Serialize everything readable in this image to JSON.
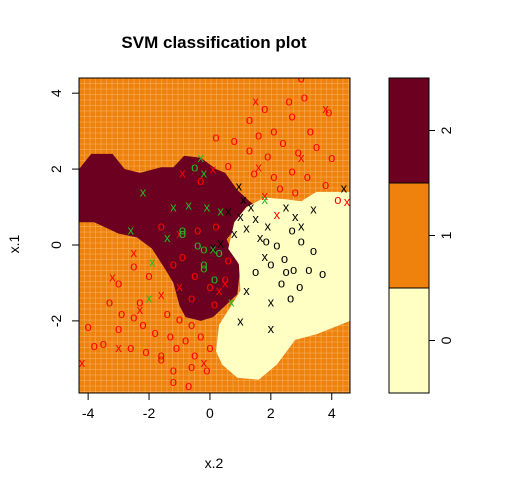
{
  "chart_data": {
    "type": "scatter",
    "title": "SVM classification plot",
    "xlabel": "x.2",
    "ylabel": "x.1",
    "xlim": [
      -4.3,
      4.6
    ],
    "ylim": [
      -3.9,
      4.4
    ],
    "xticks": [
      "-4",
      "-2",
      "0",
      "2",
      "4"
    ],
    "xtick_values": [
      -4,
      -2,
      0,
      2,
      4
    ],
    "yticks": [
      "-2",
      "0",
      "2",
      "4"
    ],
    "ytick_values": [
      -2,
      0,
      2,
      4
    ],
    "grid": true,
    "legend_levels": [
      "0",
      "1",
      "2"
    ],
    "colors": {
      "region_0": "#ffffc4",
      "region_1": "#ee820c",
      "region_2": "#6b0020",
      "class_0": "#000000",
      "class_1": "#ff0000",
      "class_2": "#22bb22",
      "grid": "#f6b56a"
    },
    "regions": [
      {
        "level": "2",
        "polygon": [
          [
            -4.3,
            2.0
          ],
          [
            -3.9,
            2.4
          ],
          [
            -3.2,
            2.4
          ],
          [
            -2.8,
            2.0
          ],
          [
            -2.3,
            1.9
          ],
          [
            -1.6,
            2.05
          ],
          [
            -1.2,
            2.05
          ],
          [
            -0.85,
            2.35
          ],
          [
            -0.3,
            2.3
          ],
          [
            0.2,
            2.0
          ],
          [
            0.5,
            1.9
          ],
          [
            0.9,
            1.45
          ],
          [
            1.3,
            1.15
          ],
          [
            1.55,
            1.0
          ],
          [
            1.0,
            0.6
          ],
          [
            0.55,
            0.15
          ],
          [
            0.75,
            -0.2
          ],
          [
            1.0,
            -0.6
          ],
          [
            0.9,
            -1.3
          ],
          [
            0.5,
            -1.6
          ],
          [
            0.1,
            -1.9
          ],
          [
            -0.3,
            -2.0
          ],
          [
            -0.8,
            -1.9
          ],
          [
            -1.0,
            -1.6
          ],
          [
            -1.2,
            -1.0
          ],
          [
            -1.5,
            -0.6
          ],
          [
            -1.9,
            -0.1
          ],
          [
            -2.4,
            0.2
          ],
          [
            -3.0,
            0.3
          ],
          [
            -3.8,
            0.6
          ],
          [
            -4.3,
            0.6
          ]
        ]
      },
      {
        "level": "0",
        "polygon": [
          [
            0.6,
            -0.1
          ],
          [
            0.8,
            0.6
          ],
          [
            1.2,
            1.0
          ],
          [
            1.8,
            1.25
          ],
          [
            2.5,
            1.2
          ],
          [
            3.0,
            1.15
          ],
          [
            3.5,
            1.4
          ],
          [
            4.6,
            1.4
          ],
          [
            4.6,
            -2.0
          ],
          [
            3.5,
            -2.35
          ],
          [
            2.8,
            -2.5
          ],
          [
            2.2,
            -3.15
          ],
          [
            1.6,
            -3.55
          ],
          [
            0.9,
            -3.5
          ],
          [
            0.4,
            -3.15
          ],
          [
            0.2,
            -2.8
          ],
          [
            0.3,
            -2.1
          ],
          [
            0.7,
            -1.6
          ],
          [
            1.0,
            -1.2
          ],
          [
            0.95,
            -0.5
          ]
        ]
      }
    ],
    "series": [
      {
        "class": "0",
        "points": [
          {
            "x": 0.95,
            "y": 1.55,
            "m": "x"
          },
          {
            "x": 1.1,
            "y": 1.2,
            "m": "x"
          },
          {
            "x": 1.35,
            "y": 1.0,
            "m": "x"
          },
          {
            "x": 1.0,
            "y": 0.75,
            "m": "x"
          },
          {
            "x": 0.8,
            "y": 0.3,
            "m": "x"
          },
          {
            "x": 1.2,
            "y": 0.45,
            "m": "x"
          },
          {
            "x": 1.5,
            "y": 0.7,
            "m": "x"
          },
          {
            "x": 0.35,
            "y": 0.05,
            "m": "x"
          },
          {
            "x": 0.1,
            "y": -0.05,
            "m": "x"
          },
          {
            "x": 0.6,
            "y": 0.9,
            "m": "x"
          },
          {
            "x": 1.65,
            "y": 0.2,
            "m": "x"
          },
          {
            "x": 1.8,
            "y": -0.3,
            "m": "x"
          },
          {
            "x": 2.5,
            "y": 1.0,
            "m": "x"
          },
          {
            "x": 2.8,
            "y": 0.75,
            "m": "x"
          },
          {
            "x": 3.4,
            "y": 0.95,
            "m": "x"
          },
          {
            "x": 4.4,
            "y": 1.5,
            "m": "x"
          },
          {
            "x": 3.0,
            "y": 0.5,
            "m": "x"
          },
          {
            "x": 1.2,
            "y": -1.2,
            "m": "x"
          },
          {
            "x": 2.0,
            "y": -1.5,
            "m": "x"
          },
          {
            "x": 1.0,
            "y": -2.0,
            "m": "x"
          },
          {
            "x": 2.0,
            "y": -2.2,
            "m": "x"
          },
          {
            "x": 1.9,
            "y": 0.5,
            "m": "x"
          },
          {
            "x": 2.2,
            "y": 0.0,
            "m": "o"
          },
          {
            "x": 2.0,
            "y": -0.5,
            "m": "o"
          },
          {
            "x": 2.45,
            "y": -0.35,
            "m": "o"
          },
          {
            "x": 2.5,
            "y": -0.7,
            "m": "o"
          },
          {
            "x": 2.75,
            "y": -0.65,
            "m": "o"
          },
          {
            "x": 2.35,
            "y": -1.0,
            "m": "o"
          },
          {
            "x": 3.0,
            "y": 0.1,
            "m": "o"
          },
          {
            "x": 3.4,
            "y": -0.15,
            "m": "o"
          },
          {
            "x": 3.25,
            "y": -0.65,
            "m": "o"
          },
          {
            "x": 3.7,
            "y": -0.75,
            "m": "o"
          },
          {
            "x": 2.95,
            "y": -1.1,
            "m": "o"
          },
          {
            "x": 2.65,
            "y": -1.4,
            "m": "o"
          },
          {
            "x": 1.85,
            "y": 0.1,
            "m": "o"
          },
          {
            "x": 2.7,
            "y": 0.4,
            "m": "o"
          },
          {
            "x": 1.5,
            "y": -0.7,
            "m": "o"
          }
        ]
      },
      {
        "class": "1",
        "points": [
          {
            "x": 3.0,
            "y": 4.4,
            "m": "o"
          },
          {
            "x": 1.8,
            "y": 3.6,
            "m": "o"
          },
          {
            "x": 2.6,
            "y": 3.8,
            "m": "o"
          },
          {
            "x": 3.1,
            "y": 3.9,
            "m": "o"
          },
          {
            "x": 3.9,
            "y": 3.5,
            "m": "o"
          },
          {
            "x": 1.3,
            "y": 3.3,
            "m": "o"
          },
          {
            "x": 1.6,
            "y": 2.9,
            "m": "o"
          },
          {
            "x": 2.1,
            "y": 3.0,
            "m": "o"
          },
          {
            "x": 2.7,
            "y": 3.4,
            "m": "o"
          },
          {
            "x": 3.3,
            "y": 3.0,
            "m": "o"
          },
          {
            "x": 0.2,
            "y": 2.85,
            "m": "o"
          },
          {
            "x": 0.8,
            "y": 2.75,
            "m": "o"
          },
          {
            "x": 1.3,
            "y": 2.5,
            "m": "o"
          },
          {
            "x": 1.9,
            "y": 2.35,
            "m": "o"
          },
          {
            "x": 2.4,
            "y": 2.7,
            "m": "o"
          },
          {
            "x": 2.9,
            "y": 2.45,
            "m": "o"
          },
          {
            "x": 3.5,
            "y": 2.6,
            "m": "o"
          },
          {
            "x": 4.0,
            "y": 2.3,
            "m": "o"
          },
          {
            "x": 1.45,
            "y": 1.9,
            "m": "o"
          },
          {
            "x": 2.1,
            "y": 1.8,
            "m": "o"
          },
          {
            "x": 2.7,
            "y": 1.95,
            "m": "o"
          },
          {
            "x": 3.2,
            "y": 1.8,
            "m": "o"
          },
          {
            "x": 3.8,
            "y": 1.6,
            "m": "o"
          },
          {
            "x": 2.3,
            "y": 1.5,
            "m": "o"
          },
          {
            "x": 2.8,
            "y": 1.4,
            "m": "o"
          },
          {
            "x": 4.2,
            "y": 1.2,
            "m": "o"
          },
          {
            "x": 0.6,
            "y": 2.1,
            "m": "o"
          },
          {
            "x": -0.3,
            "y": 1.7,
            "m": "o"
          },
          {
            "x": -2.3,
            "y": -1.5,
            "m": "o"
          },
          {
            "x": -3.3,
            "y": -1.5,
            "m": "o"
          },
          {
            "x": -2.9,
            "y": -1.8,
            "m": "o"
          },
          {
            "x": -2.5,
            "y": -1.9,
            "m": "o"
          },
          {
            "x": -3.0,
            "y": -2.2,
            "m": "o"
          },
          {
            "x": -2.2,
            "y": -2.1,
            "m": "o"
          },
          {
            "x": -1.4,
            "y": -1.8,
            "m": "o"
          },
          {
            "x": -1.0,
            "y": -1.95,
            "m": "o"
          },
          {
            "x": -0.6,
            "y": -2.1,
            "m": "o"
          },
          {
            "x": -1.8,
            "y": -2.3,
            "m": "o"
          },
          {
            "x": -1.3,
            "y": -2.4,
            "m": "o"
          },
          {
            "x": -0.8,
            "y": -2.5,
            "m": "o"
          },
          {
            "x": -0.3,
            "y": -2.4,
            "m": "o"
          },
          {
            "x": -2.6,
            "y": -2.7,
            "m": "o"
          },
          {
            "x": -2.1,
            "y": -2.8,
            "m": "o"
          },
          {
            "x": -1.6,
            "y": -2.9,
            "m": "o"
          },
          {
            "x": -1.1,
            "y": -2.7,
            "m": "o"
          },
          {
            "x": -0.5,
            "y": -2.9,
            "m": "o"
          },
          {
            "x": 0.0,
            "y": -2.7,
            "m": "o"
          },
          {
            "x": -3.5,
            "y": -2.6,
            "m": "o"
          },
          {
            "x": -4.0,
            "y": -2.15,
            "m": "o"
          },
          {
            "x": -3.8,
            "y": -2.65,
            "m": "o"
          },
          {
            "x": -1.6,
            "y": -3.0,
            "m": "o"
          },
          {
            "x": -1.2,
            "y": -3.3,
            "m": "o"
          },
          {
            "x": -0.6,
            "y": -3.2,
            "m": "o"
          },
          {
            "x": -0.1,
            "y": -3.3,
            "m": "o"
          },
          {
            "x": -1.2,
            "y": -3.6,
            "m": "o"
          },
          {
            "x": -0.7,
            "y": -3.7,
            "m": "o"
          },
          {
            "x": -2.0,
            "y": -0.8,
            "m": "o"
          },
          {
            "x": -2.5,
            "y": -0.55,
            "m": "o"
          },
          {
            "x": -3.0,
            "y": -1.0,
            "m": "o"
          },
          {
            "x": -1.2,
            "y": -0.5,
            "m": "o"
          },
          {
            "x": -0.9,
            "y": -0.3,
            "m": "o"
          },
          {
            "x": -0.5,
            "y": -0.8,
            "m": "o"
          },
          {
            "x": 0.0,
            "y": -1.1,
            "m": "o"
          },
          {
            "x": 0.5,
            "y": -0.9,
            "m": "o"
          },
          {
            "x": 0.15,
            "y": -1.55,
            "m": "o"
          },
          {
            "x": -1.6,
            "y": 0.5,
            "m": "o"
          },
          {
            "x": -0.4,
            "y": 0.4,
            "m": "o"
          },
          {
            "x": 0.2,
            "y": 0.5,
            "m": "o"
          },
          {
            "x": 0.6,
            "y": -0.4,
            "m": "o"
          },
          {
            "x": -0.6,
            "y": -1.4,
            "m": "o"
          },
          {
            "x": 1.5,
            "y": 3.8,
            "m": "x"
          },
          {
            "x": 3.8,
            "y": 3.6,
            "m": "x"
          },
          {
            "x": -0.9,
            "y": 1.9,
            "m": "x"
          },
          {
            "x": 0.1,
            "y": 2.0,
            "m": "x"
          },
          {
            "x": 1.6,
            "y": 2.05,
            "m": "x"
          },
          {
            "x": 3.0,
            "y": 2.3,
            "m": "x"
          },
          {
            "x": 1.8,
            "y": 1.3,
            "m": "x"
          },
          {
            "x": 4.5,
            "y": 1.15,
            "m": "x"
          },
          {
            "x": -1.0,
            "y": 0.3,
            "m": "x"
          },
          {
            "x": -2.5,
            "y": -0.2,
            "m": "x"
          },
          {
            "x": -3.2,
            "y": -0.85,
            "m": "x"
          },
          {
            "x": -1.0,
            "y": -1.1,
            "m": "x"
          },
          {
            "x": 0.3,
            "y": -1.2,
            "m": "x"
          },
          {
            "x": -1.6,
            "y": -1.3,
            "m": "x"
          },
          {
            "x": -2.3,
            "y": -1.7,
            "m": "x"
          },
          {
            "x": -3.0,
            "y": -2.7,
            "m": "x"
          },
          {
            "x": -4.2,
            "y": -3.1,
            "m": "x"
          },
          {
            "x": -0.2,
            "y": -3.1,
            "m": "x"
          },
          {
            "x": 0.5,
            "y": -1.0,
            "m": "x"
          },
          {
            "x": 2.2,
            "y": 0.8,
            "m": "x"
          }
        ]
      },
      {
        "class": "2",
        "points": [
          {
            "x": -0.3,
            "y": 2.3,
            "m": "x"
          },
          {
            "x": -0.2,
            "y": 1.9,
            "m": "x"
          },
          {
            "x": -2.2,
            "y": 1.4,
            "m": "x"
          },
          {
            "x": -1.2,
            "y": 1.0,
            "m": "x"
          },
          {
            "x": -0.7,
            "y": 1.05,
            "m": "x"
          },
          {
            "x": -0.1,
            "y": 1.0,
            "m": "x"
          },
          {
            "x": 0.35,
            "y": 0.9,
            "m": "x"
          },
          {
            "x": -2.6,
            "y": 0.4,
            "m": "x"
          },
          {
            "x": -1.4,
            "y": 0.2,
            "m": "x"
          },
          {
            "x": -1.9,
            "y": -0.45,
            "m": "x"
          },
          {
            "x": -2.0,
            "y": -1.4,
            "m": "x"
          },
          {
            "x": 0.7,
            "y": -1.5,
            "m": "x"
          },
          {
            "x": 1.8,
            "y": 1.2,
            "m": "x"
          },
          {
            "x": 0.1,
            "y": -0.1,
            "m": "x"
          },
          {
            "x": -0.5,
            "y": 2.05,
            "m": "o"
          },
          {
            "x": -0.9,
            "y": 0.4,
            "m": "o"
          },
          {
            "x": -0.4,
            "y": 0.0,
            "m": "o"
          },
          {
            "x": -0.2,
            "y": -0.5,
            "m": "o"
          },
          {
            "x": -0.2,
            "y": -0.1,
            "m": "o"
          },
          {
            "x": 0.3,
            "y": -0.2,
            "m": "o"
          },
          {
            "x": -0.2,
            "y": -0.6,
            "m": "o"
          },
          {
            "x": 0.15,
            "y": -0.9,
            "m": "o"
          },
          {
            "x": -0.9,
            "y": 0.3,
            "m": "o"
          }
        ]
      }
    ]
  }
}
